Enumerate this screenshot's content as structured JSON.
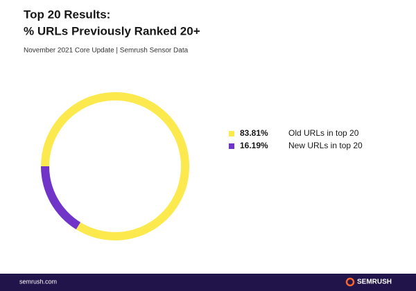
{
  "chart_data": {
    "type": "donut",
    "title_lines": [
      "Top 20 Results:",
      "% URLs Previously Ranked 20+"
    ],
    "subtitle": "November 2021 Core Update | Semrush Sensor Data",
    "categories": [
      "Old URLs in top 20",
      "New URLs in top 20"
    ],
    "values": [
      83.81,
      16.19
    ],
    "value_labels": [
      "83.81%",
      "16.19%"
    ],
    "colors": [
      "#fbe94e",
      "#7035c8"
    ]
  },
  "footer": {
    "url": "semrush.com",
    "brand": "SEMRUSH"
  }
}
